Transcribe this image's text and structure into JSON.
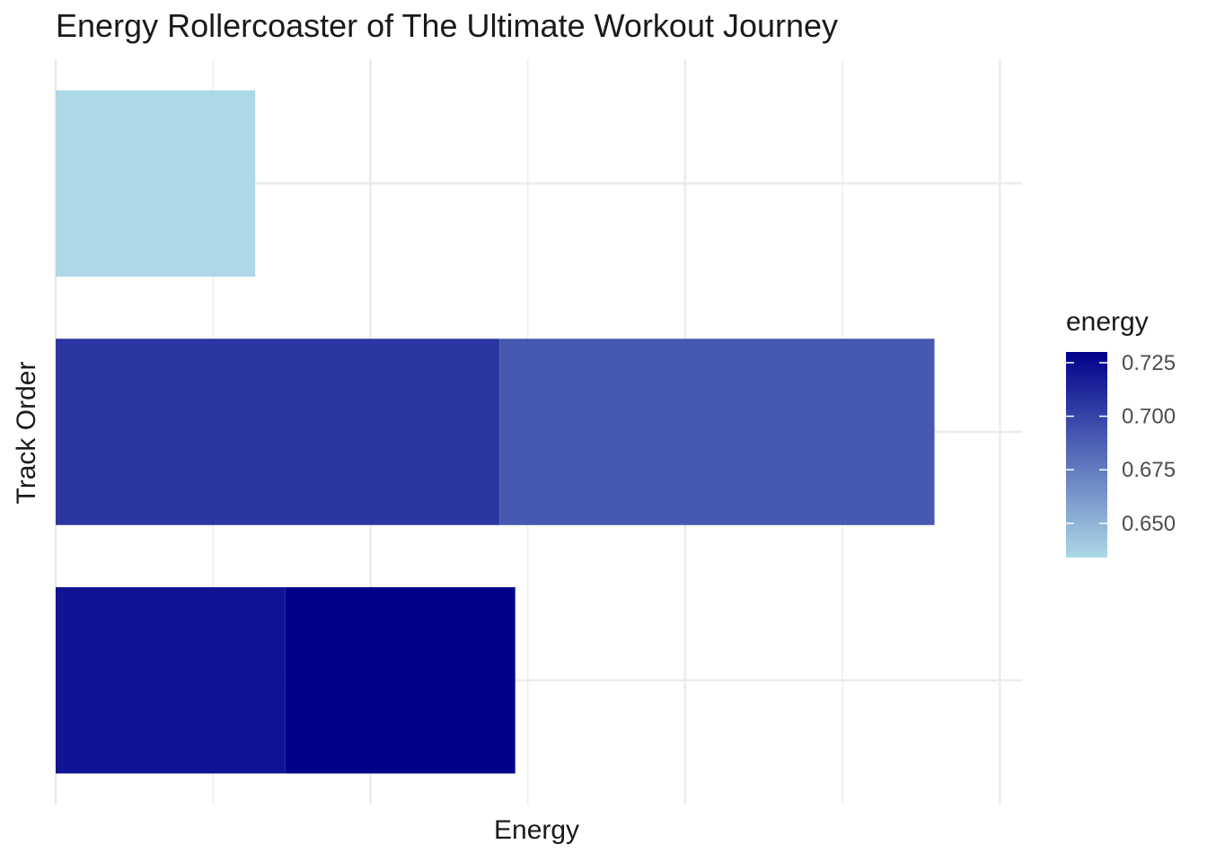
{
  "chart_data": {
    "type": "bar",
    "orientation": "horizontal",
    "stacked": true,
    "title": "Energy Rollercoaster of The Ultimate Workout Journey",
    "xlabel": "Energy",
    "ylabel": "Track Order",
    "xlim": [
      0,
      3.07
    ],
    "grid": true,
    "rows": [
      {
        "segments": [
          {
            "value": 0.634,
            "energy": 0.634
          }
        ]
      },
      {
        "segments": [
          {
            "value": 1.41,
            "energy": 0.706
          },
          {
            "value": 1.382,
            "energy": 0.691
          }
        ]
      },
      {
        "segments": [
          {
            "value": 0.73,
            "energy": 0.721
          },
          {
            "value": 0.73,
            "energy": 0.73
          }
        ]
      }
    ],
    "legend": {
      "title": "energy",
      "position": "right",
      "range": [
        0.634,
        0.73
      ],
      "breaks": [
        0.65,
        0.675,
        0.7,
        0.725
      ],
      "labels": [
        "0.650",
        "0.675",
        "0.700",
        "0.725"
      ],
      "low_color": "#ADD8E6",
      "high_color": "#00008B"
    }
  }
}
